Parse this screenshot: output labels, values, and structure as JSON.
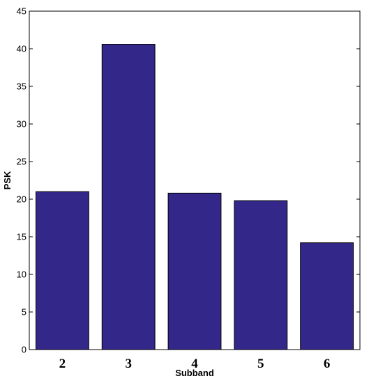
{
  "chart_data": {
    "type": "bar",
    "categories": [
      "2",
      "3",
      "4",
      "5",
      "6"
    ],
    "values": [
      21.0,
      40.6,
      20.8,
      19.8,
      14.2
    ],
    "xlabel": "Subband",
    "ylabel": "PSK",
    "ylim": [
      0,
      45
    ],
    "yticks": [
      0,
      5,
      10,
      15,
      20,
      25,
      30,
      35,
      40,
      45
    ],
    "grid": false,
    "legend": "none",
    "bar_color": "#33288a"
  }
}
